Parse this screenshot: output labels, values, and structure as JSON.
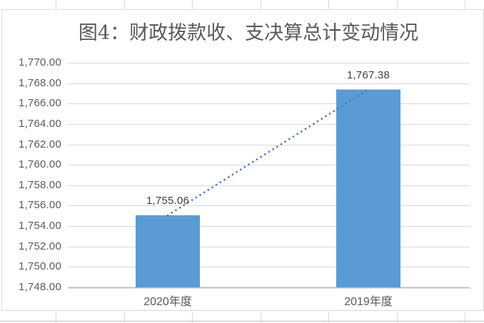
{
  "chart_data": {
    "type": "bar",
    "title": "图4：财政拨款收、支决算总计变动情况",
    "categories": [
      "2020年度",
      "2019年度"
    ],
    "values": [
      1755.06,
      1767.38
    ],
    "data_labels": [
      "1,755.06",
      "1,767.38"
    ],
    "ylim": [
      1748,
      1770
    ],
    "ytick_step": 2,
    "ytick_labels": [
      "1,748.00",
      "1,750.00",
      "1,752.00",
      "1,754.00",
      "1,756.00",
      "1,758.00",
      "1,760.00",
      "1,762.00",
      "1,764.00",
      "1,766.00",
      "1,768.00",
      "1,770.00"
    ],
    "xlabel": "",
    "ylabel": "",
    "grid": true,
    "legend": "none",
    "trendline": {
      "type": "linear",
      "style": "dotted"
    }
  },
  "colors": {
    "bar": "#5B9BD5",
    "trendline": "#4472C4",
    "gridline": "#D9D9D9",
    "axis_line": "#BFBFBF",
    "chart_border": "#D9D9D9",
    "sheet_gridline": "#D9D9D9",
    "title_text": "#595959",
    "axis_text": "#595959",
    "data_label_text": "#404040"
  }
}
